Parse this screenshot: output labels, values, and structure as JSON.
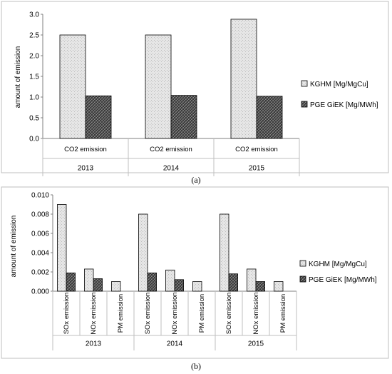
{
  "chart_data": [
    {
      "type": "bar",
      "panel_label": "(a)",
      "ylabel": "amount of emission",
      "ylim": [
        0,
        3.0
      ],
      "yticks": [
        "0.0",
        "0.5",
        "1.0",
        "1.5",
        "2.0",
        "2.5",
        "3.0"
      ],
      "groups": [
        "2013",
        "2014",
        "2015"
      ],
      "categories": [
        "CO2 emission"
      ],
      "legend_position": "right",
      "series": [
        {
          "name": "KGHM [Mg/MgCu]",
          "color": "#e8e8e8",
          "values": [
            [
              2.5
            ],
            [
              2.5
            ],
            [
              2.88
            ]
          ]
        },
        {
          "name": "PGE GiEK [Mg/MWh]",
          "color": "#505050",
          "values": [
            [
              1.03
            ],
            [
              1.04
            ],
            [
              1.02
            ]
          ]
        }
      ]
    },
    {
      "type": "bar",
      "panel_label": "(b)",
      "ylabel": "amount of emission",
      "ylim": [
        0,
        0.01
      ],
      "yticks": [
        "0.000",
        "0.002",
        "0.004",
        "0.006",
        "0.008",
        "0.010"
      ],
      "groups": [
        "2013",
        "2014",
        "2015"
      ],
      "categories": [
        "SOx emission",
        "NOx emission",
        "PM emission"
      ],
      "legend_position": "right",
      "series": [
        {
          "name": "KGHM [Mg/MgCu]",
          "color": "#e8e8e8",
          "values": [
            [
              0.009,
              0.0023,
              0.001
            ],
            [
              0.008,
              0.0022,
              0.001
            ],
            [
              0.008,
              0.0023,
              0.001
            ]
          ]
        },
        {
          "name": "PGE GiEK [Mg/MWh]",
          "color": "#505050",
          "values": [
            [
              0.0019,
              0.0013,
              0
            ],
            [
              0.0019,
              0.0012,
              0
            ],
            [
              0.0018,
              0.001,
              0
            ]
          ]
        }
      ]
    }
  ]
}
